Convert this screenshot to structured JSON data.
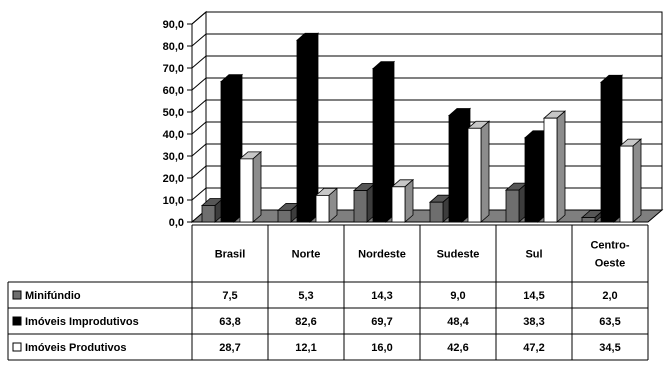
{
  "chart_data": {
    "type": "bar",
    "categories": [
      "Brasil",
      "Norte",
      "Nordeste",
      "Sudeste",
      "Sul",
      "Centro-Oeste"
    ],
    "category_lines": [
      [
        "Brasil"
      ],
      [
        "Norte"
      ],
      [
        "Nordeste"
      ],
      [
        "Sudeste"
      ],
      [
        "Sul"
      ],
      [
        "Centro-",
        "Oeste"
      ]
    ],
    "series": [
      {
        "name": "Minifúndio",
        "values": [
          7.5,
          5.3,
          14.3,
          9.0,
          14.5,
          2.0
        ],
        "color": "#6e6e6e"
      },
      {
        "name": "Imóveis Improdutivos",
        "values": [
          63.8,
          82.6,
          69.7,
          48.4,
          38.3,
          63.5
        ],
        "color": "#000000"
      },
      {
        "name": "Imóveis Produtivos",
        "values": [
          28.7,
          12.1,
          16.0,
          42.6,
          47.2,
          34.5
        ],
        "color": "#ffffff"
      }
    ],
    "table_values": [
      [
        "7,5",
        "5,3",
        "14,3",
        "9,0",
        "14,5",
        "2,0"
      ],
      [
        "63,8",
        "82,6",
        "69,7",
        "48,4",
        "38,3",
        "63,5"
      ],
      [
        "28,7",
        "12,1",
        "16,0",
        "42,6",
        "47,2",
        "34,5"
      ]
    ],
    "y_ticks": [
      "0,0",
      "10,0",
      "20,0",
      "30,0",
      "40,0",
      "50,0",
      "60,0",
      "70,0",
      "80,0",
      "90,0"
    ],
    "ylim": [
      0,
      90
    ],
    "grid": true,
    "legend": "data-table"
  }
}
